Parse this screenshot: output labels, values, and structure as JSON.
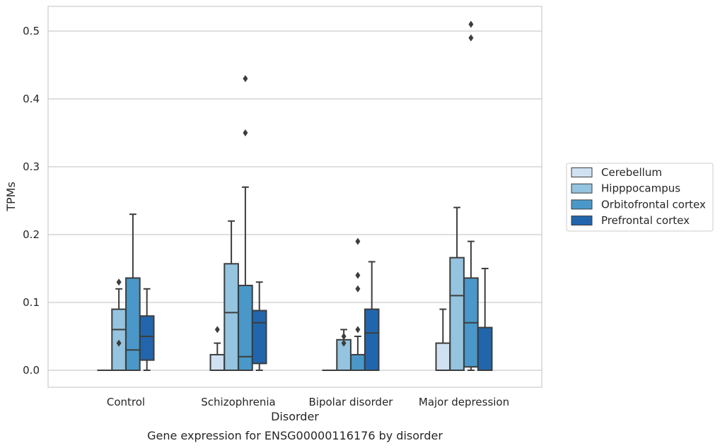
{
  "chart_data": {
    "type": "box",
    "title": "Gene expression for ENSG00000116176 by disorder",
    "xlabel": "Disorder",
    "ylabel": "TPMs",
    "ylim": [
      -0.025,
      0.54
    ],
    "yticks": [
      0.0,
      0.1,
      0.2,
      0.3,
      0.4,
      0.5
    ],
    "grid": "horizontal",
    "legend_placement": "right",
    "categories": [
      "Control",
      "Schizophrenia",
      "Bipolar disorder",
      "Major depression"
    ],
    "series": [
      {
        "name": "Cerebellum",
        "color": "#d0e1f2",
        "boxes": [
          {
            "whisker_low": 0.0,
            "q1": 0.0,
            "median": 0.0,
            "q3": 0.0,
            "whisker_high": 0.0,
            "outliers": []
          },
          {
            "whisker_low": 0.0,
            "q1": 0.0,
            "median": 0.0,
            "q3": 0.023,
            "whisker_high": 0.04,
            "outliers": [
              0.06
            ]
          },
          {
            "whisker_low": 0.0,
            "q1": 0.0,
            "median": 0.0,
            "q3": 0.0,
            "whisker_high": 0.0,
            "outliers": []
          },
          {
            "whisker_low": 0.0,
            "q1": 0.0,
            "median": 0.0,
            "q3": 0.04,
            "whisker_high": 0.09,
            "outliers": []
          }
        ]
      },
      {
        "name": "Hipppocampus",
        "color": "#94c4df",
        "boxes": [
          {
            "whisker_low": 0.0,
            "q1": 0.0,
            "median": 0.06,
            "q3": 0.09,
            "whisker_high": 0.12,
            "outliers": [
              0.04,
              0.13
            ]
          },
          {
            "whisker_low": 0.0,
            "q1": 0.0,
            "median": 0.085,
            "q3": 0.157,
            "whisker_high": 0.22,
            "outliers": []
          },
          {
            "whisker_low": 0.0,
            "q1": 0.0,
            "median": 0.0,
            "q3": 0.045,
            "whisker_high": 0.06,
            "outliers": [
              0.04,
              0.05
            ]
          },
          {
            "whisker_low": 0.0,
            "q1": 0.0,
            "median": 0.11,
            "q3": 0.166,
            "whisker_high": 0.24,
            "outliers": []
          }
        ]
      },
      {
        "name": "Orbitofrontal cortex",
        "color": "#4a98c9",
        "boxes": [
          {
            "whisker_low": 0.0,
            "q1": 0.0,
            "median": 0.03,
            "q3": 0.136,
            "whisker_high": 0.23,
            "outliers": []
          },
          {
            "whisker_low": 0.0,
            "q1": 0.0,
            "median": 0.02,
            "q3": 0.125,
            "whisker_high": 0.27,
            "outliers": [
              0.35,
              0.43
            ]
          },
          {
            "whisker_low": 0.0,
            "q1": 0.0,
            "median": 0.0,
            "q3": 0.023,
            "whisker_high": 0.05,
            "outliers": [
              0.06,
              0.12,
              0.14,
              0.19
            ]
          },
          {
            "whisker_low": 0.0,
            "q1": 0.005,
            "median": 0.07,
            "q3": 0.136,
            "whisker_high": 0.19,
            "outliers": [
              0.49,
              0.51
            ]
          }
        ]
      },
      {
        "name": "Prefrontal cortex",
        "color": "#2166ac",
        "boxes": [
          {
            "whisker_low": 0.0,
            "q1": 0.015,
            "median": 0.05,
            "q3": 0.08,
            "whisker_high": 0.12,
            "outliers": []
          },
          {
            "whisker_low": 0.0,
            "q1": 0.01,
            "median": 0.07,
            "q3": 0.088,
            "whisker_high": 0.13,
            "outliers": []
          },
          {
            "whisker_low": 0.0,
            "q1": 0.0,
            "median": 0.055,
            "q3": 0.09,
            "whisker_high": 0.16,
            "outliers": []
          },
          {
            "whisker_low": 0.0,
            "q1": 0.0,
            "median": 0.0,
            "q3": 0.063,
            "whisker_high": 0.15,
            "outliers": []
          }
        ]
      }
    ]
  },
  "colors": {
    "grid": "#cccccc",
    "frame": "#cccccc",
    "box_edge": "#3d3d3d",
    "text": "#262626"
  }
}
